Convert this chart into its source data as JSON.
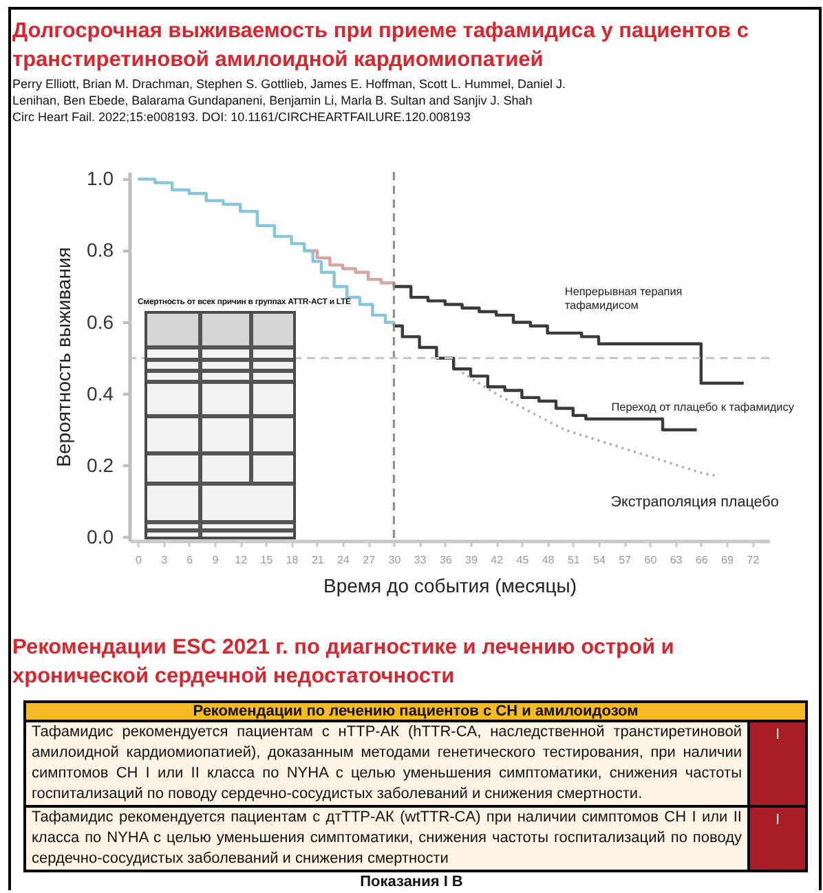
{
  "chart_data": {
    "type": "step",
    "title": "Долгосрочная выживаемость при приеме тафамидиса у пациентов с транстиретиновой амилоидной кардиомиопатией",
    "subtitle": "Perry Elliott, Brian M. Drachman, Stephen S. Gottlieb, James E. Hoffman, Scott L. Hummel, Daniel J. Lenihan, Ben Ebede, Balarama Gundapaneni, Benjamin Li, Marla B. Sultan and Sanjiv J. Shah",
    "xlabel": "Время до события (месяцы)",
    "ylabel": "Вероятность выживания",
    "xlim": [
      -1,
      74
    ],
    "xticks": [
      0,
      3,
      6,
      9,
      12,
      15,
      18,
      21,
      24,
      27,
      30,
      33,
      36,
      39,
      42,
      45,
      48,
      51,
      54,
      57,
      60,
      63,
      66,
      69,
      72
    ],
    "ylim": [
      -0.01,
      1.02
    ],
    "yticks": [
      {
        "value": 0,
        "label": "0.0"
      },
      0.2,
      0.4,
      0.6,
      0.8,
      {
        "value": 1,
        "label": "1.0"
      }
    ],
    "series": [
      {
        "type": "step",
        "color": "#86c5da",
        "x": [
          0,
          2,
          4,
          6,
          8,
          10,
          12,
          14,
          16,
          18,
          19.5,
          20.5,
          21.5,
          23,
          24.5,
          26,
          27.5,
          29,
          30
        ],
        "values": [
          1,
          0.99,
          0.97,
          0.96,
          0.94,
          0.93,
          0.91,
          0.87,
          0.84,
          0.82,
          0.8,
          0.77,
          0.74,
          0.7,
          0.67,
          0.65,
          0.62,
          0.6,
          0.59
        ]
      },
      {
        "type": "step",
        "color": "#d9a3a3",
        "x": [
          20.5,
          21,
          22.5,
          24,
          25.5,
          27,
          28.5,
          30
        ],
        "values": [
          0.8,
          0.78,
          0.76,
          0.75,
          0.74,
          0.72,
          0.71,
          0.7
        ]
      },
      {
        "name": "Непрерывная терапия тафамидисом",
        "type": "step",
        "color": "#3a3a3a",
        "x": [
          30,
          32,
          34,
          36,
          38,
          40,
          42,
          44,
          46,
          48,
          50,
          52,
          54,
          66,
          71
        ],
        "values": [
          0.7,
          0.67,
          0.66,
          0.65,
          0.64,
          0.63,
          0.62,
          0.6,
          0.59,
          0.57,
          0.57,
          0.56,
          0.54,
          0.43,
          0.43
        ]
      },
      {
        "name": "Переход от плацебо к тафамидису",
        "type": "step",
        "color": "#3a3a3a",
        "x": [
          30,
          31,
          33,
          35,
          37,
          39,
          41,
          43,
          45,
          47,
          49,
          51,
          52.5,
          61.5,
          65.5
        ],
        "values": [
          0.59,
          0.56,
          0.53,
          0.5,
          0.47,
          0.45,
          0.42,
          0.41,
          0.39,
          0.38,
          0.36,
          0.34,
          0.33,
          0.3,
          0.3
        ]
      },
      {
        "name": "Экстраполяция плацебо",
        "type": "line",
        "line_style": "dotted",
        "color": "#b0b0b0",
        "x": [
          38,
          42,
          46,
          50,
          54,
          58,
          62,
          66,
          68
        ],
        "values": [
          0.46,
          0.4,
          0.35,
          0.3,
          0.27,
          0.24,
          0.21,
          0.18,
          0.17
        ]
      }
    ],
    "ref_lines": [
      {
        "axis": "x",
        "value": 30,
        "color": "#8c8c8c",
        "line_style": "dashed"
      },
      {
        "axis": "y",
        "value": 0.5,
        "color": "#c4c4c4",
        "line_style": "dashed"
      }
    ],
    "annotations": [
      "Circ Heart Fail. 2022;15:e008193. DOI: 10.1161/CIRCHEARTFAILURE.120.008193",
      "Смертность от всех причин в группах ATTR-ACT и LTE",
      "Рекомендации ESC 2021 г. по диагностике и лечению острой и хронической сердечной недостаточности",
      "Рекомендации по лечению пациентов с СН и амилоидозом",
      "Тафамидис рекомендуется пациентам с нТТР-АК (hTTR-CA, наследственной транстиретиновой амилоидной кардиомиопатией), доказанным методами генетического тестирования, при наличии симптомов СН I или II класса по NYHA с целью уменьшения симптоматики, снижения частоты госпитализаций по поводу сердечно-сосудистых заболеваний и снижения смертности.",
      "I",
      "Тафамидис рекомендуется пациентам с дтТТР-АК (wtTTR-CA) при наличии симптомов СН I или II класса по NYHA с целью уменьшения симптоматики, снижения частоты госпитализаций по поводу сердечно-сосудистых заболеваний и снижения смертности",
      "I",
      "Показания I B"
    ]
  }
}
